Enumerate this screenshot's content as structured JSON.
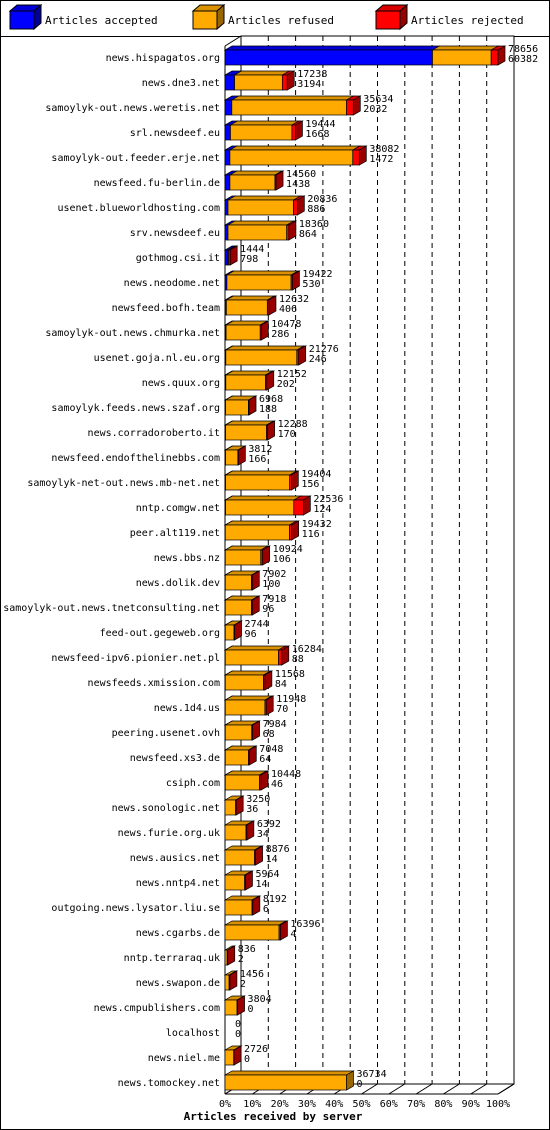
{
  "legend": [
    {
      "label": "Articles accepted",
      "color": "#0000ff"
    },
    {
      "label": "Articles refused",
      "color": "#ffaa00"
    },
    {
      "label": "Articles rejected",
      "color": "#ff0000"
    }
  ],
  "chart_data": {
    "type": "bar",
    "orientation": "horizontal",
    "stacked": true,
    "xlabel": "Articles received by server",
    "xlim": [
      0,
      100
    ],
    "xunit": "%",
    "ticks": [
      "0%",
      "10%",
      "20%",
      "30%",
      "40%",
      "50%",
      "60%",
      "70%",
      "80%",
      "90%",
      "100%"
    ],
    "grid": true,
    "legend_position": "top",
    "series": [
      {
        "name": "Articles accepted",
        "color": "#0000ff"
      },
      {
        "name": "Articles refused",
        "color": "#ffaa00"
      },
      {
        "name": "Articles rejected",
        "color": "#ff0000"
      }
    ],
    "rows": [
      {
        "server": "news.hispagatos.org",
        "total": "78656",
        "second": "60382",
        "accepted": 76.0,
        "refused": 21.5,
        "rejected": 2.5
      },
      {
        "server": "news.dne3.net",
        "total": "17238",
        "second": "3194",
        "accepted": 3.5,
        "refused": 17.5,
        "rejected": 1.8
      },
      {
        "server": "samoylyk-out.news.weretis.net",
        "total": "35634",
        "second": "2032",
        "accepted": 2.5,
        "refused": 42.0,
        "rejected": 2.5
      },
      {
        "server": "srl.newsdeef.eu",
        "total": "19444",
        "second": "1668",
        "accepted": 2.0,
        "refused": 22.5,
        "rejected": 1.3
      },
      {
        "server": "samoylyk-out.feeder.erje.net",
        "total": "38082",
        "second": "1472",
        "accepted": 1.8,
        "refused": 45.0,
        "rejected": 2.4
      },
      {
        "server": "newsfeed.fu-berlin.de",
        "total": "14560",
        "second": "1438",
        "accepted": 1.8,
        "refused": 16.5,
        "rejected": 0.4
      },
      {
        "server": "usenet.blueworldhosting.com",
        "total": "20836",
        "second": "886",
        "accepted": 1.1,
        "refused": 24.0,
        "rejected": 1.4
      },
      {
        "server": "srv.newsdeef.eu",
        "total": "18360",
        "second": "864",
        "accepted": 1.1,
        "refused": 21.5,
        "rejected": 0.8
      },
      {
        "server": "gothmog.csi.it",
        "total": "1444",
        "second": "798",
        "accepted": 1.0,
        "refused": 0.3,
        "rejected": 0.6
      },
      {
        "server": "news.neodome.net",
        "total": "19422",
        "second": "530",
        "accepted": 0.7,
        "refused": 23.5,
        "rejected": 0.5
      },
      {
        "server": "newsfeed.bofh.team",
        "total": "12632",
        "second": "406",
        "accepted": 0.5,
        "refused": 15.0,
        "rejected": 0.6
      },
      {
        "server": "samoylyk-out.news.chmurka.net",
        "total": "10478",
        "second": "286",
        "accepted": 0.4,
        "refused": 12.5,
        "rejected": 0.4
      },
      {
        "server": "usenet.goja.nl.eu.org",
        "total": "21276",
        "second": "246",
        "accepted": 0.3,
        "refused": 26.0,
        "rejected": 0.7
      },
      {
        "server": "news.quux.org",
        "total": "12152",
        "second": "202",
        "accepted": 0.3,
        "refused": 14.5,
        "rejected": 0.5
      },
      {
        "server": "samoylyk.feeds.news.szaf.org",
        "total": "6968",
        "second": "188",
        "accepted": 0.2,
        "refused": 8.4,
        "rejected": 0.2
      },
      {
        "server": "news.corradoroberto.it",
        "total": "12288",
        "second": "170",
        "accepted": 0.2,
        "refused": 15.0,
        "rejected": 0.4
      },
      {
        "server": "newsfeed.endofthelinebbs.com",
        "total": "3812",
        "second": "166",
        "accepted": 0.2,
        "refused": 4.5,
        "rejected": 0.2
      },
      {
        "server": "samoylyk-net-out.news.mb-net.net",
        "total": "19404",
        "second": "156",
        "accepted": 0.2,
        "refused": 23.5,
        "rejected": 0.6
      },
      {
        "server": "nntp.comgw.net",
        "total": "22536",
        "second": "124",
        "accepted": 0.2,
        "refused": 25.0,
        "rejected": 3.5
      },
      {
        "server": "peer.alt119.net",
        "total": "19432",
        "second": "116",
        "accepted": 0.1,
        "refused": 23.5,
        "rejected": 0.8
      },
      {
        "server": "news.bbs.nz",
        "total": "10924",
        "second": "106",
        "accepted": 0.1,
        "refused": 13.0,
        "rejected": 0.7
      },
      {
        "server": "news.dolik.dev",
        "total": "7902",
        "second": "100",
        "accepted": 0.1,
        "refused": 9.6,
        "rejected": 0.3
      },
      {
        "server": "samoylyk-out.news.tnetconsulting.net",
        "total": "7918",
        "second": "96",
        "accepted": 0.1,
        "refused": 9.6,
        "rejected": 0.3
      },
      {
        "server": "feed-out.gegeweb.org",
        "total": "2744",
        "second": "96",
        "accepted": 0.1,
        "refused": 3.2,
        "rejected": 0.2
      },
      {
        "server": "newsfeed-ipv6.pionier.net.pl",
        "total": "16284",
        "second": "88",
        "accepted": 0.1,
        "refused": 19.5,
        "rejected": 1.2
      },
      {
        "server": "newsfeeds.xmission.com",
        "total": "11568",
        "second": "84",
        "accepted": 0.1,
        "refused": 14.0,
        "rejected": 0.5
      },
      {
        "server": "news.1d4.us",
        "total": "11948",
        "second": "70",
        "accepted": 0.1,
        "refused": 14.5,
        "rejected": 0.5
      },
      {
        "server": "peering.usenet.ovh",
        "total": "7984",
        "second": "68",
        "accepted": 0.1,
        "refused": 9.7,
        "rejected": 0.3
      },
      {
        "server": "newsfeed.xs3.de",
        "total": "7048",
        "second": "64",
        "accepted": 0.1,
        "refused": 8.5,
        "rejected": 0.3
      },
      {
        "server": "csiph.com",
        "total": "10448",
        "second": "46",
        "accepted": 0.1,
        "refused": 12.5,
        "rejected": 0.6
      },
      {
        "server": "news.sonologic.net",
        "total": "3250",
        "second": "36",
        "accepted": 0.0,
        "refused": 3.9,
        "rejected": 0.2
      },
      {
        "server": "news.furie.org.uk",
        "total": "6392",
        "second": "34",
        "accepted": 0.0,
        "refused": 7.7,
        "rejected": 0.3
      },
      {
        "server": "news.ausics.net",
        "total": "8876",
        "second": "14",
        "accepted": 0.0,
        "refused": 10.8,
        "rejected": 0.4
      },
      {
        "server": "news.nntp4.net",
        "total": "5964",
        "second": "14",
        "accepted": 0.0,
        "refused": 7.2,
        "rejected": 0.3
      },
      {
        "server": "outgoing.news.lysator.liu.se",
        "total": "8192",
        "second": "6",
        "accepted": 0.0,
        "refused": 9.9,
        "rejected": 0.3
      },
      {
        "server": "news.cgarbs.de",
        "total": "16396",
        "second": "4",
        "accepted": 0.0,
        "refused": 19.8,
        "rejected": 0.5
      },
      {
        "server": "nntp.terraraq.uk",
        "total": "836",
        "second": "2",
        "accepted": 0.0,
        "refused": 0.8,
        "rejected": 0.2
      },
      {
        "server": "news.swapon.de",
        "total": "1456",
        "second": "2",
        "accepted": 0.0,
        "refused": 1.5,
        "rejected": 0.3
      },
      {
        "server": "news.cmpublishers.com",
        "total": "3804",
        "second": "0",
        "accepted": 0.0,
        "refused": 4.4,
        "rejected": 0.2
      },
      {
        "server": "localhost",
        "total": "0",
        "second": "0",
        "accepted": 0.0,
        "refused": 0.0,
        "rejected": 0.0
      },
      {
        "server": "news.niel.me",
        "total": "2726",
        "second": "0",
        "accepted": 0.0,
        "refused": 3.2,
        "rejected": 0.1
      },
      {
        "server": "news.tomockey.net",
        "total": "36734",
        "second": "0",
        "accepted": 0.0,
        "refused": 44.5,
        "rejected": 0.0
      }
    ]
  }
}
